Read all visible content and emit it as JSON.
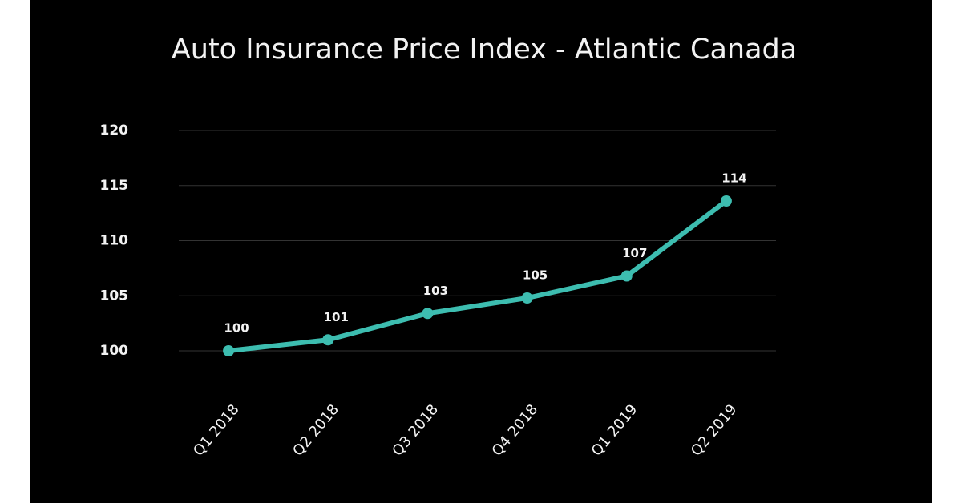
{
  "chart_data": {
    "type": "line",
    "title": "Auto Insurance Price Index - Atlantic Canada",
    "categories": [
      "Q1 2018",
      "Q2 2018",
      "Q3 2018",
      "Q4 2018",
      "Q1 2019",
      "Q2 2019"
    ],
    "values": [
      100,
      101,
      103.4,
      104.8,
      106.8,
      113.6
    ],
    "value_labels": [
      "100",
      "101",
      "103",
      "105",
      "107",
      "114"
    ],
    "color": "#3dbdb0",
    "ylim": [
      100,
      120
    ],
    "yticks": [
      100,
      105,
      110,
      115,
      120
    ],
    "grid": true
  }
}
